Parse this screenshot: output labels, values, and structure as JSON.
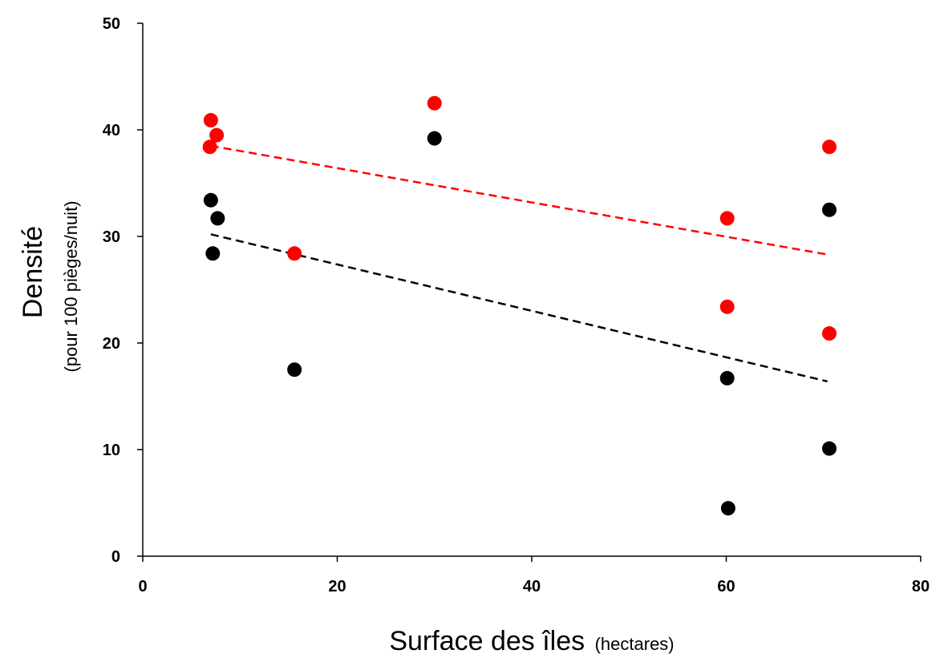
{
  "chart_data": {
    "type": "scatter",
    "xlabel": "Surface des îles",
    "xlabel_unit": "(hectares)",
    "ylabel": "Densité",
    "ylabel_unit": "(pour 100 pièges/nuit)",
    "xlim": [
      0,
      80
    ],
    "ylim": [
      0,
      50
    ],
    "x_ticks": [
      0,
      20,
      40,
      60,
      80
    ],
    "y_ticks": [
      0,
      10,
      20,
      30,
      40,
      50
    ],
    "grid": false,
    "legend": "none",
    "series": [
      {
        "color": "#ff0000",
        "points": [
          {
            "x": 7.0,
            "y": 40.9
          },
          {
            "x": 7.6,
            "y": 39.5
          },
          {
            "x": 6.9,
            "y": 38.4
          },
          {
            "x": 15.6,
            "y": 28.4
          },
          {
            "x": 30.0,
            "y": 42.5
          },
          {
            "x": 60.1,
            "y": 31.7
          },
          {
            "x": 60.1,
            "y": 23.4
          },
          {
            "x": 70.6,
            "y": 38.4
          },
          {
            "x": 70.6,
            "y": 20.9
          }
        ],
        "trendline": {
          "style": "dashed",
          "from": {
            "x": 7.0,
            "y": 38.5
          },
          "to": {
            "x": 70.4,
            "y": 28.3
          }
        }
      },
      {
        "color": "#000000",
        "points": [
          {
            "x": 7.0,
            "y": 33.4
          },
          {
            "x": 7.7,
            "y": 31.7
          },
          {
            "x": 7.2,
            "y": 28.4
          },
          {
            "x": 15.6,
            "y": 17.5
          },
          {
            "x": 30.0,
            "y": 39.2
          },
          {
            "x": 60.1,
            "y": 16.7
          },
          {
            "x": 60.2,
            "y": 4.5
          },
          {
            "x": 70.6,
            "y": 32.5
          },
          {
            "x": 70.6,
            "y": 10.1
          }
        ],
        "trendline": {
          "style": "dashed",
          "from": {
            "x": 7.0,
            "y": 30.2
          },
          "to": {
            "x": 70.4,
            "y": 16.4
          }
        }
      }
    ]
  }
}
